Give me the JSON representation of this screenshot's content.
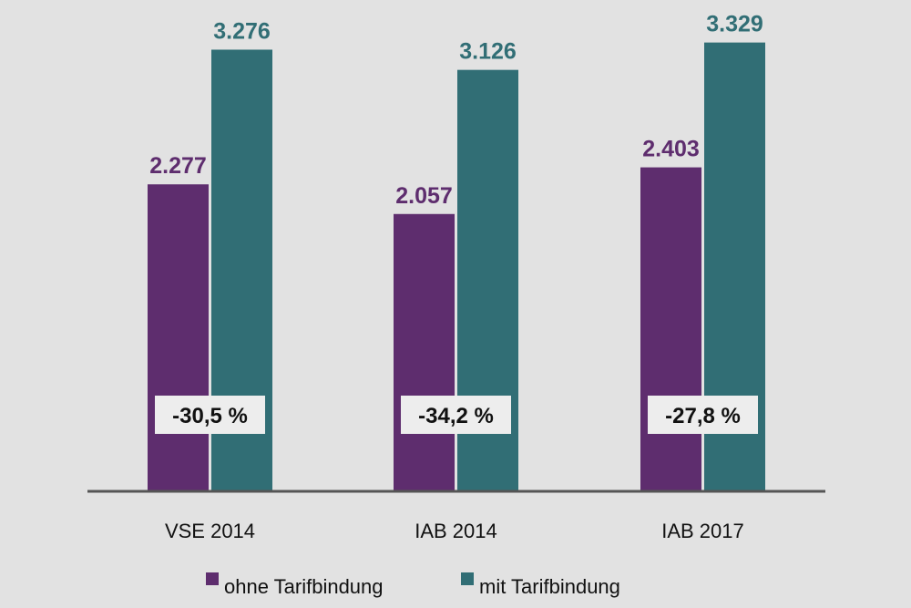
{
  "chart_data": {
    "type": "bar",
    "title": "",
    "xlabel": "",
    "ylabel": "",
    "ylim": [
      0,
      3500
    ],
    "grid": false,
    "categories": [
      "VSE 2014",
      "IAB 2014",
      "IAB 2017"
    ],
    "series": [
      {
        "name": "ohne Tarifbindung",
        "color": "#5e2d6e",
        "values": [
          2277,
          2057,
          2403
        ],
        "labels": [
          "2.277",
          "2.057",
          "2.403"
        ]
      },
      {
        "name": "mit Tarifbindung",
        "color": "#316e75",
        "values": [
          3276,
          3126,
          3329
        ],
        "labels": [
          "3.276",
          "3.126",
          "3.329"
        ]
      }
    ],
    "annotations": [
      "-30,5 %",
      "-34,2 %",
      "-27,8 %"
    ],
    "legend": {
      "position": "bottom",
      "entries": [
        "ohne Tarifbindung",
        "mit Tarifbindung"
      ]
    }
  }
}
